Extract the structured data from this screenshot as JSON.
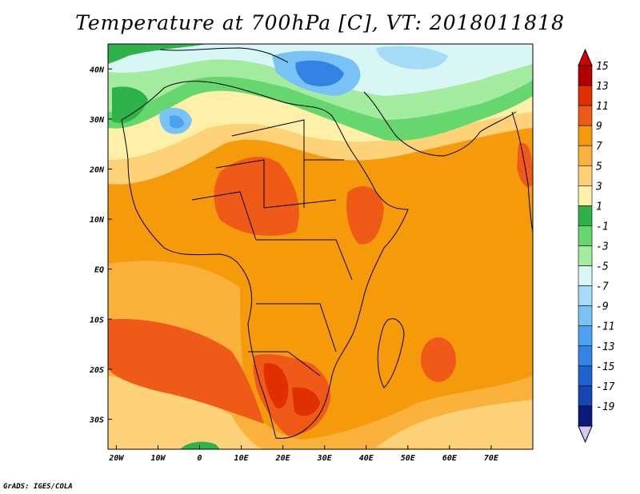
{
  "title": "Temperature at 700hPa [C], VT: 2018011818",
  "credit": "GrADS: IGES/COLA",
  "map": {
    "lon_range": [
      -22,
      80
    ],
    "lat_range": [
      -36,
      45
    ],
    "lon_ticks": [
      {
        "value": -20,
        "label": "20W"
      },
      {
        "value": -10,
        "label": "10W"
      },
      {
        "value": 0,
        "label": "0"
      },
      {
        "value": 10,
        "label": "10E"
      },
      {
        "value": 20,
        "label": "20E"
      },
      {
        "value": 30,
        "label": "30E"
      },
      {
        "value": 40,
        "label": "40E"
      },
      {
        "value": 50,
        "label": "50E"
      },
      {
        "value": 60,
        "label": "60E"
      },
      {
        "value": 70,
        "label": "70E"
      }
    ],
    "lat_ticks": [
      {
        "value": 40,
        "label": "40N"
      },
      {
        "value": 30,
        "label": "30N"
      },
      {
        "value": 20,
        "label": "20N"
      },
      {
        "value": 10,
        "label": "10N"
      },
      {
        "value": 0,
        "label": "EQ"
      },
      {
        "value": -10,
        "label": "10S"
      },
      {
        "value": -20,
        "label": "20S"
      },
      {
        "value": -30,
        "label": "30S"
      }
    ]
  },
  "colorbar": {
    "levels": [
      {
        "label": "15",
        "color": "#b00000"
      },
      {
        "label": "13",
        "color": "#e03000"
      },
      {
        "label": "11",
        "color": "#f05a18"
      },
      {
        "label": "9",
        "color": "#f59a0a"
      },
      {
        "label": "7",
        "color": "#fbb23c"
      },
      {
        "label": "5",
        "color": "#fdd279"
      },
      {
        "label": "3",
        "color": "#fef0a8"
      },
      {
        "label": "1",
        "color": "#2eb34a"
      },
      {
        "label": "-1",
        "color": "#66d76e"
      },
      {
        "label": "-3",
        "color": "#a3eb9e"
      },
      {
        "label": "-5",
        "color": "#d8f6f4"
      },
      {
        "label": "-7",
        "color": "#a7dcf7"
      },
      {
        "label": "-9",
        "color": "#79c2f5"
      },
      {
        "label": "-11",
        "color": "#4da2ef"
      },
      {
        "label": "-13",
        "color": "#3283e4"
      },
      {
        "label": "-15",
        "color": "#1f62d2"
      },
      {
        "label": "-17",
        "color": "#1745b4"
      },
      {
        "label": "-19",
        "color": "#0b1a78"
      }
    ],
    "below_color": "#d6c8f5",
    "top_color": "#d60000"
  }
}
